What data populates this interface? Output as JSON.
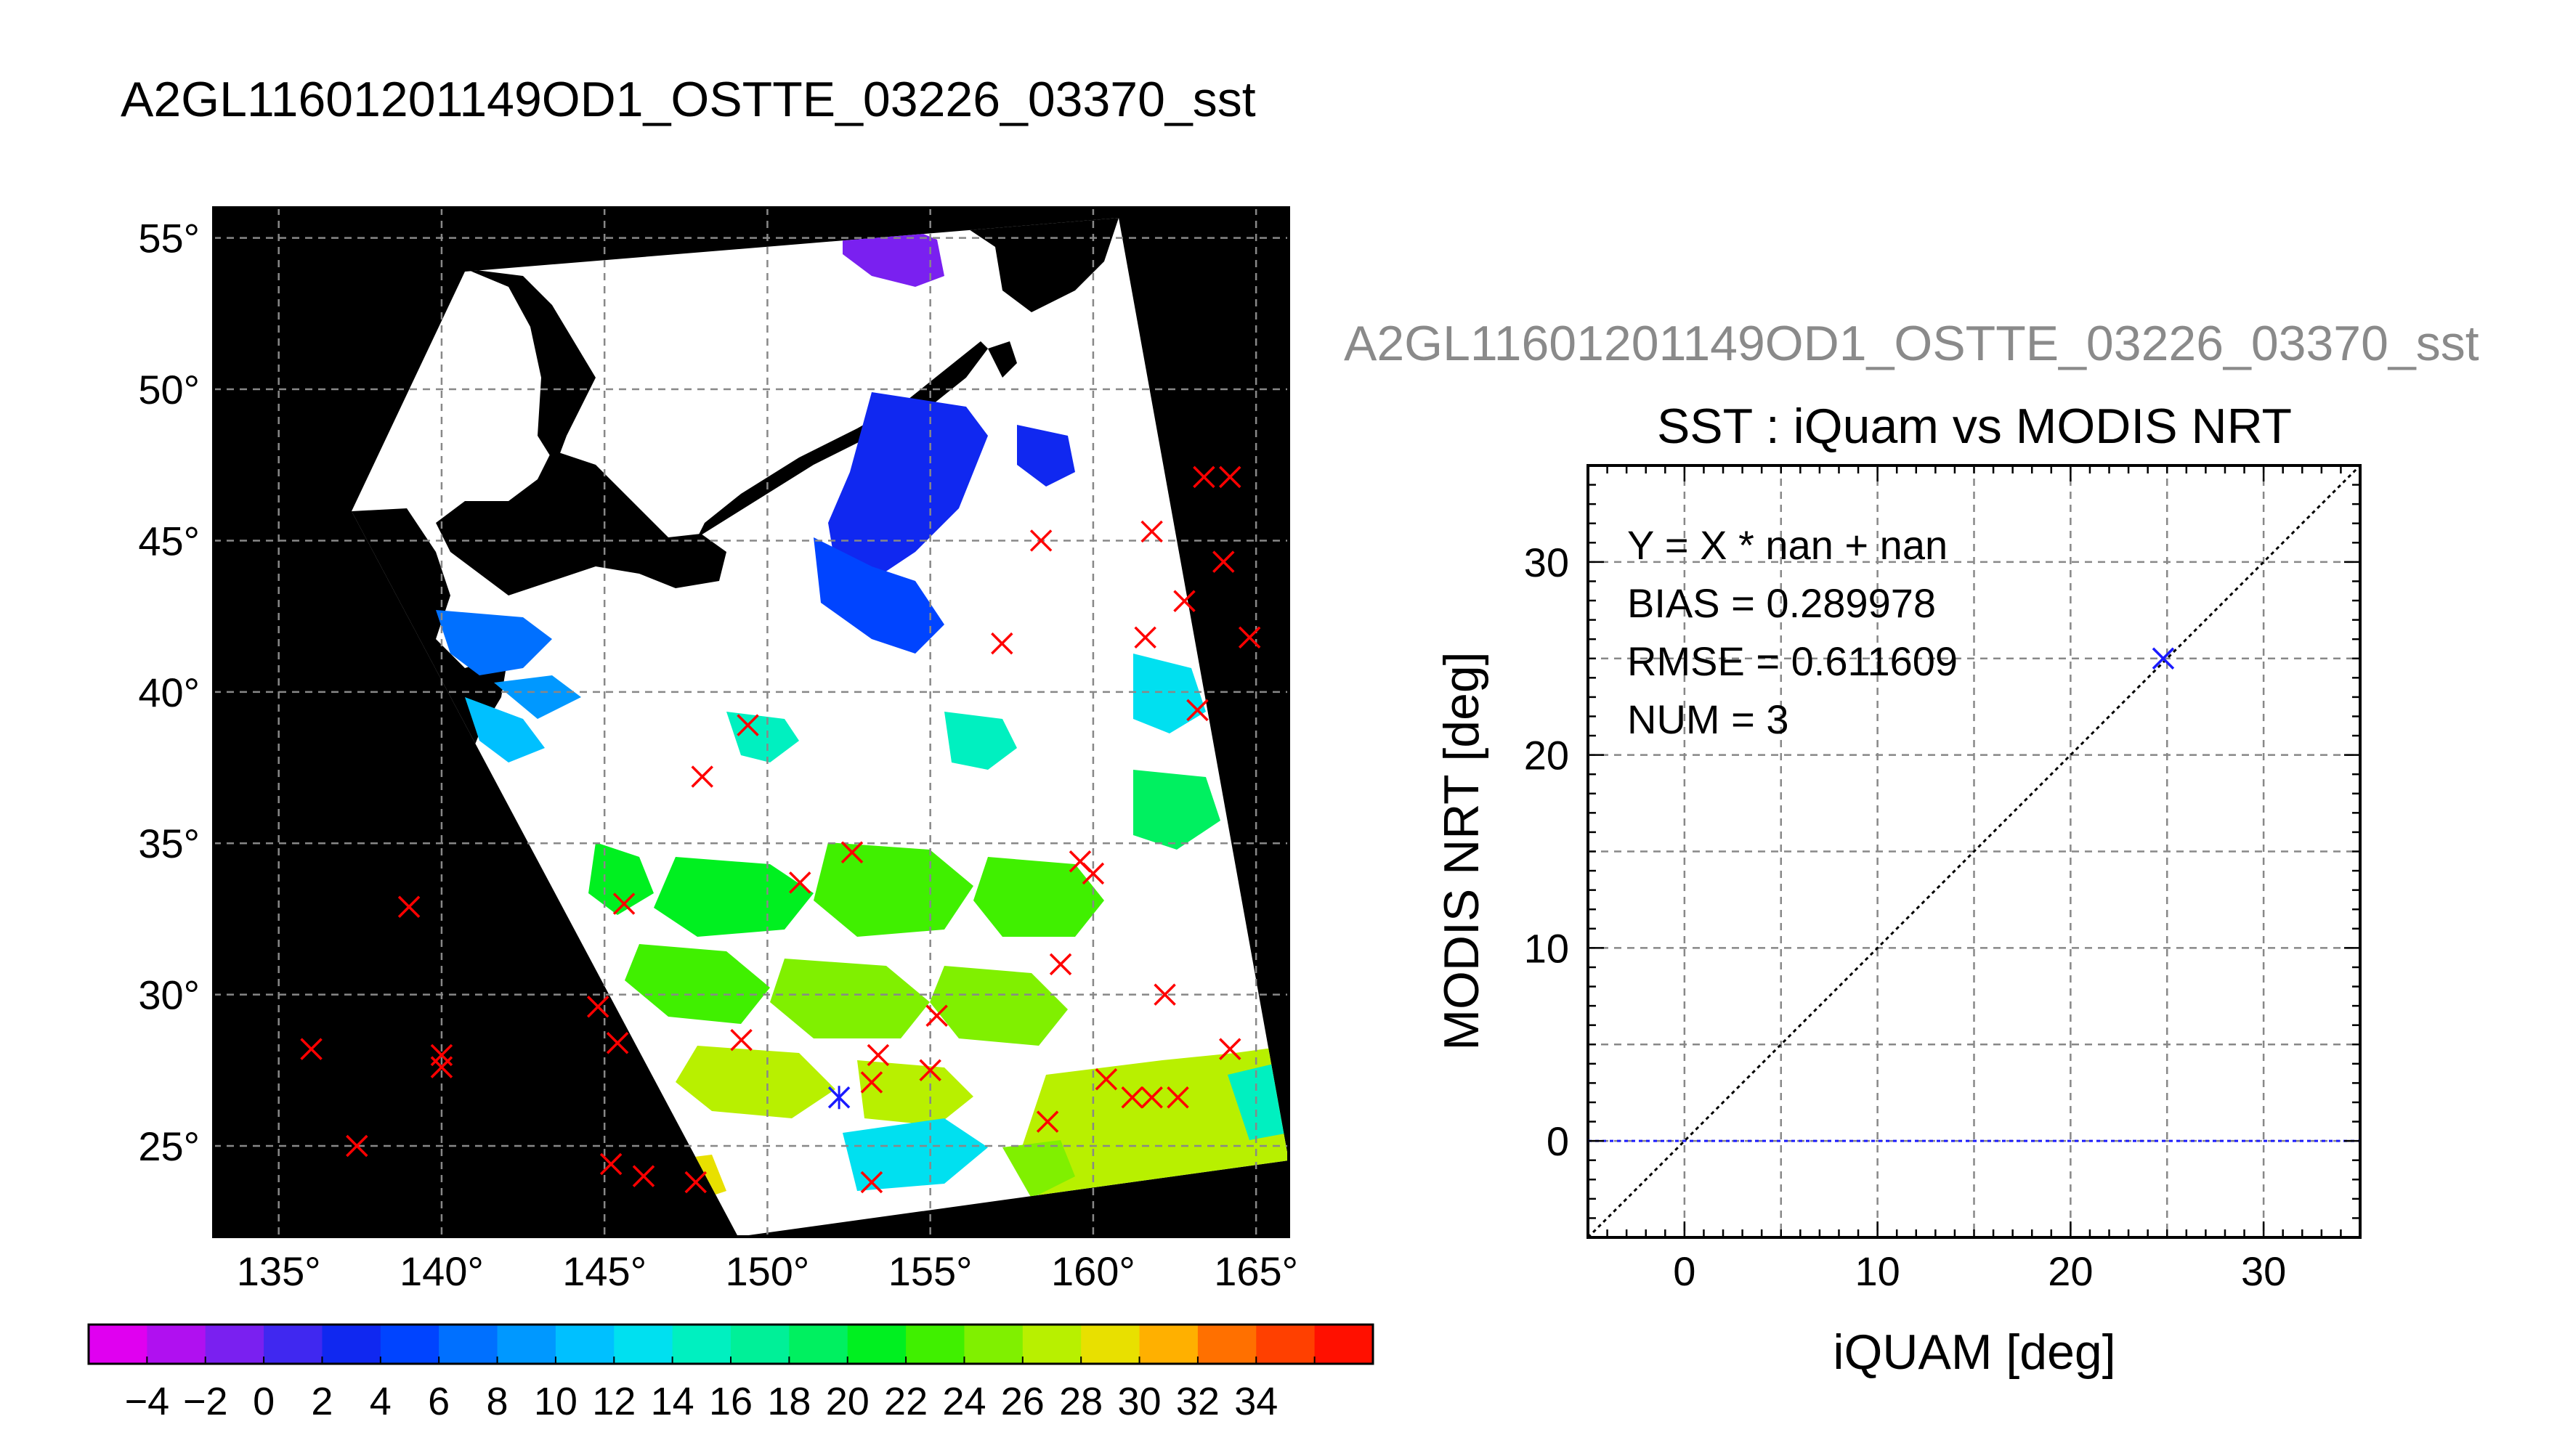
{
  "page_title": "A2GL11601201149OD1_OSTTE_03226_03370_sst",
  "scatter_header": "A2GL11601201149OD1_OSTTE_03226_03370_sst",
  "chart_data": [
    {
      "type": "map",
      "title": "A2GL11601201149OD1_OSTTE_03226_03370_sst",
      "xlim": [
        133,
        166
      ],
      "ylim": [
        22,
        56
      ],
      "xtick_labels": [
        "135°",
        "140°",
        "145°",
        "150°",
        "155°",
        "160°",
        "165°"
      ],
      "xtick_values": [
        135,
        140,
        145,
        150,
        155,
        160,
        165
      ],
      "ytick_labels": [
        "55°",
        "50°",
        "45°",
        "40°",
        "35°",
        "30°",
        "25°"
      ],
      "ytick_values": [
        55,
        50,
        45,
        40,
        35,
        30,
        25
      ],
      "grid": true,
      "colorbar": {
        "tick_labels": [
          "−4",
          "−2",
          "0",
          "2",
          "4",
          "6",
          "8",
          "10",
          "12",
          "14",
          "16",
          "18",
          "20",
          "22",
          "24",
          "26",
          "28",
          "30",
          "32",
          "34"
        ],
        "colors": [
          "#e000f0",
          "#b010f0",
          "#7a20f0",
          "#4028f0",
          "#1028f0",
          "#0044ff",
          "#0070ff",
          "#0098ff",
          "#00c0ff",
          "#00e0f0",
          "#00f0c0",
          "#00f098",
          "#00f060",
          "#00f020",
          "#40f000",
          "#80f000",
          "#b8f000",
          "#e8e000",
          "#ffb000",
          "#ff7000",
          "#ff4000",
          "#ff1000"
        ]
      },
      "buoys": [
        {
          "lon": 161.8,
          "lat": 26.6
        },
        {
          "lon": 136.0,
          "lat": 28.2
        },
        {
          "lon": 137.4,
          "lat": 25.0
        },
        {
          "lon": 139.0,
          "lat": 32.9
        },
        {
          "lon": 140.0,
          "lat": 28.0
        },
        {
          "lon": 140.0,
          "lat": 27.6
        },
        {
          "lon": 144.8,
          "lat": 29.6
        },
        {
          "lon": 145.4,
          "lat": 28.4
        },
        {
          "lon": 145.6,
          "lat": 33.0
        },
        {
          "lon": 145.2,
          "lat": 24.4
        },
        {
          "lon": 146.2,
          "lat": 24.0
        },
        {
          "lon": 147.8,
          "lat": 23.8
        },
        {
          "lon": 148.0,
          "lat": 37.2
        },
        {
          "lon": 149.2,
          "lat": 28.5
        },
        {
          "lon": 149.4,
          "lat": 38.9
        },
        {
          "lon": 151.0,
          "lat": 33.7
        },
        {
          "lon": 152.6,
          "lat": 34.7
        },
        {
          "lon": 153.2,
          "lat": 27.1
        },
        {
          "lon": 153.4,
          "lat": 28.0
        },
        {
          "lon": 153.2,
          "lat": 23.8
        },
        {
          "lon": 155.0,
          "lat": 27.5
        },
        {
          "lon": 155.2,
          "lat": 29.3
        },
        {
          "lon": 157.2,
          "lat": 41.6
        },
        {
          "lon": 158.4,
          "lat": 45.0
        },
        {
          "lon": 158.6,
          "lat": 25.8
        },
        {
          "lon": 159.0,
          "lat": 31.0
        },
        {
          "lon": 159.6,
          "lat": 34.4
        },
        {
          "lon": 160.0,
          "lat": 34.0
        },
        {
          "lon": 160.4,
          "lat": 27.2
        },
        {
          "lon": 161.2,
          "lat": 26.6
        },
        {
          "lon": 161.6,
          "lat": 41.8
        },
        {
          "lon": 161.8,
          "lat": 45.3
        },
        {
          "lon": 162.2,
          "lat": 30.0
        },
        {
          "lon": 162.6,
          "lat": 26.6
        },
        {
          "lon": 162.8,
          "lat": 43.0
        },
        {
          "lon": 163.2,
          "lat": 39.4
        },
        {
          "lon": 163.4,
          "lat": 47.1
        },
        {
          "lon": 164.2,
          "lat": 47.1
        },
        {
          "lon": 164.0,
          "lat": 44.3
        },
        {
          "lon": 164.2,
          "lat": 28.2
        },
        {
          "lon": 164.8,
          "lat": 41.8
        }
      ],
      "matchup": {
        "lon": 152.2,
        "lat": 26.6
      }
    },
    {
      "type": "scatter",
      "title": "SST : iQuam vs MODIS NRT",
      "xlabel": "iQUAM [deg]",
      "ylabel": "MODIS NRT [deg]",
      "xlim": [
        -5,
        35
      ],
      "ylim": [
        -5,
        35
      ],
      "xticks": [
        "0",
        "10",
        "20",
        "30"
      ],
      "yticks": [
        "0",
        "10",
        "20",
        "30"
      ],
      "xtick_values": [
        0,
        10,
        20,
        30
      ],
      "ytick_values": [
        0,
        10,
        20,
        30
      ],
      "grid": true,
      "stats": {
        "fit": "Y = X * nan + nan",
        "bias": "BIAS = 0.289978",
        "rmse": "RMSE = 0.611609",
        "num": "NUM = 3"
      },
      "points": [
        {
          "x": 24.8,
          "y": 25.0
        }
      ],
      "reference_lines": [
        "y = x",
        "y = 0"
      ]
    }
  ],
  "colors": {
    "land": "#000000",
    "marker_red": "#ff0000",
    "marker_blue": "#1a1aff",
    "grid": "#888888",
    "header_gray": "#8a8a8a"
  }
}
